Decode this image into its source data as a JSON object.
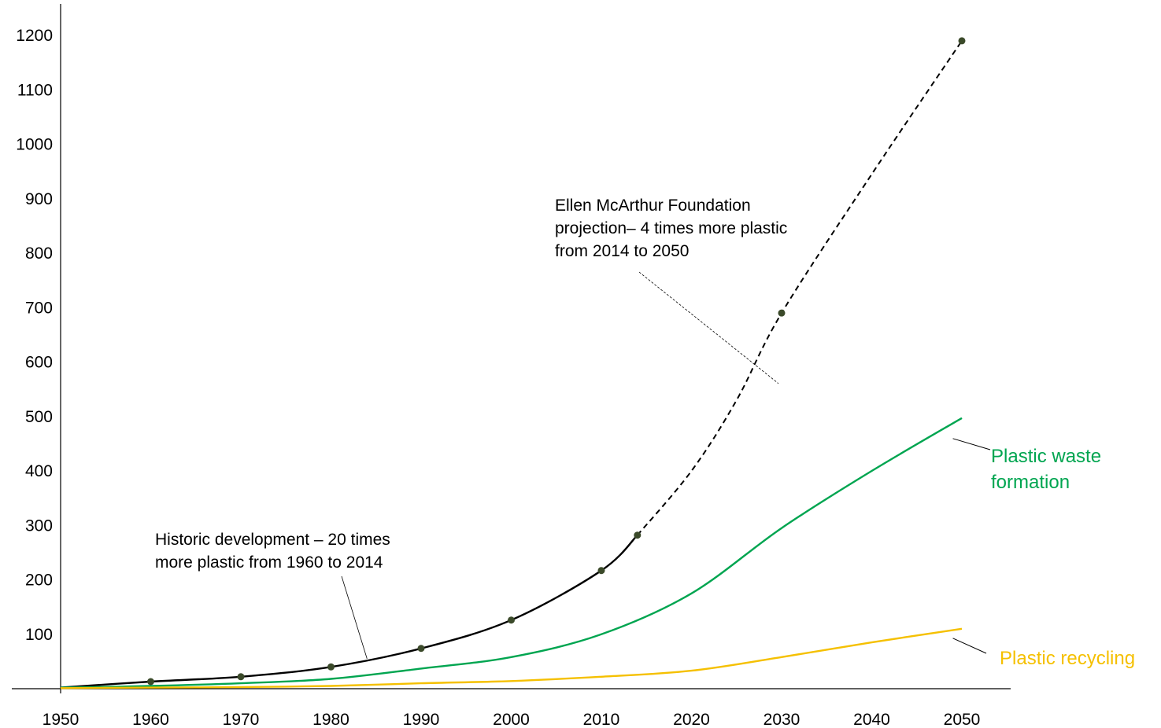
{
  "chart_data": {
    "type": "line",
    "title": "",
    "xlabel": "",
    "ylabel": "",
    "xlim": [
      1950,
      2050
    ],
    "ylim": [
      0,
      1250
    ],
    "grid": false,
    "legend": "inline labels at line ends",
    "x_ticks": [
      {
        "value": 1950,
        "label": "1950"
      },
      {
        "value": 1960,
        "label": "1960"
      },
      {
        "value": 1970,
        "label": "1970"
      },
      {
        "value": 1980,
        "label": "1980"
      },
      {
        "value": 1990,
        "label": "1990"
      },
      {
        "value": 2000,
        "label": "2000"
      },
      {
        "value": 2010,
        "label": "2010"
      },
      {
        "value": 2020,
        "label": "2020"
      },
      {
        "value": 2030,
        "label": "2030"
      },
      {
        "value": 2040,
        "label": "2040"
      },
      {
        "value": 2050,
        "label": "2050"
      }
    ],
    "y_ticks": [
      {
        "value": 100,
        "label": "100"
      },
      {
        "value": 200,
        "label": "200"
      },
      {
        "value": 300,
        "label": "300"
      },
      {
        "value": 400,
        "label": "400"
      },
      {
        "value": 500,
        "label": "500"
      },
      {
        "value": 600,
        "label": "600"
      },
      {
        "value": 700,
        "label": "700"
      },
      {
        "value": 800,
        "label": "800"
      },
      {
        "value": 900,
        "label": "900"
      },
      {
        "value": 1000,
        "label": "1000"
      },
      {
        "value": 1100,
        "label": "1100"
      },
      {
        "value": 1200,
        "label": "1200"
      }
    ],
    "series": [
      {
        "key": "historic",
        "name": "",
        "color": "#000000",
        "style": "solid",
        "markers": true,
        "points": [
          [
            1950,
            2
          ],
          [
            1960,
            13
          ],
          [
            1970,
            22
          ],
          [
            1980,
            40
          ],
          [
            1990,
            74
          ],
          [
            2000,
            126
          ],
          [
            2010,
            217
          ],
          [
            2014,
            282
          ]
        ]
      },
      {
        "key": "projection",
        "name": "",
        "color": "#000000",
        "style": "dashed",
        "markers": true,
        "markers_at": [
          2030,
          2050
        ],
        "points": [
          [
            2014,
            282
          ],
          [
            2020,
            400
          ],
          [
            2025,
            530
          ],
          [
            2030,
            690
          ],
          [
            2040,
            945
          ],
          [
            2050,
            1190
          ]
        ]
      },
      {
        "key": "waste",
        "name": "Plastic waste formation",
        "color": "#00a550",
        "style": "solid",
        "markers": false,
        "points": [
          [
            1950,
            2
          ],
          [
            1960,
            5
          ],
          [
            1970,
            10
          ],
          [
            1980,
            18
          ],
          [
            1990,
            37
          ],
          [
            2000,
            58
          ],
          [
            2010,
            100
          ],
          [
            2020,
            175
          ],
          [
            2030,
            295
          ],
          [
            2040,
            400
          ],
          [
            2050,
            497
          ]
        ]
      },
      {
        "key": "recycling",
        "name": "Plastic recycling",
        "color": "#f5c000",
        "style": "solid",
        "markers": false,
        "points": [
          [
            1950,
            1
          ],
          [
            1960,
            2
          ],
          [
            1970,
            3
          ],
          [
            1980,
            5
          ],
          [
            1990,
            10
          ],
          [
            2000,
            14
          ],
          [
            2010,
            22
          ],
          [
            2020,
            33
          ],
          [
            2030,
            58
          ],
          [
            2040,
            85
          ],
          [
            2050,
            110
          ]
        ]
      }
    ],
    "annotations": [
      {
        "key": "historic_note",
        "lines": [
          "Historic development – 20 times",
          "more plastic from 1960 to 2014"
        ],
        "points_to": [
          1984,
          55
        ]
      },
      {
        "key": "projection_note",
        "lines": [
          "Ellen McArthur Foundation",
          "projection– 4 times more plastic",
          "from 2014 to 2050"
        ],
        "points_to": [
          2030,
          575
        ]
      }
    ]
  }
}
